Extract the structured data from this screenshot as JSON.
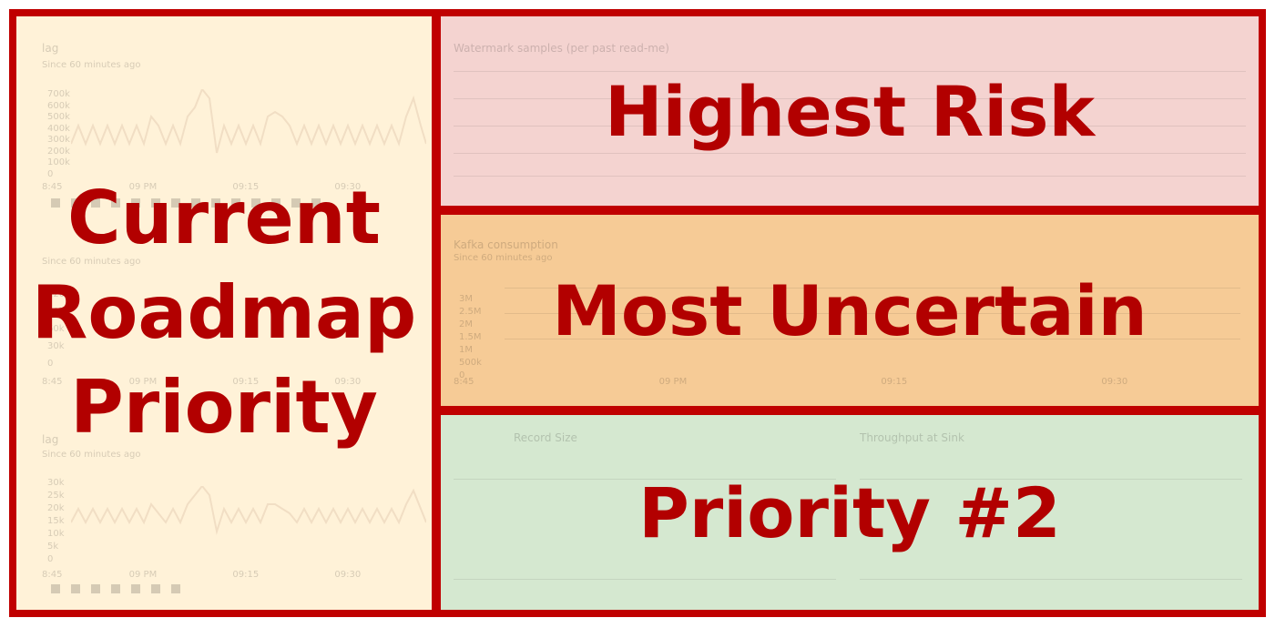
{
  "labels": {
    "current_roadmap": [
      "Current",
      "Roadmap",
      "Priority"
    ],
    "highest_risk": "Highest Risk",
    "most_uncertain": "Most Uncertain",
    "priority_two": "Priority #2"
  },
  "background_panels": {
    "lag_chart": {
      "title": "lag",
      "subtitle": "Since 60 minutes ago",
      "y_ticks": [
        "700k",
        "600k",
        "500k",
        "400k",
        "300k",
        "200k",
        "100k",
        "0"
      ],
      "x_ticks": [
        "8:45",
        "09 PM",
        "09:15",
        "09:30"
      ]
    },
    "middle_chart": {
      "subtitle": "Since 60 minutes ago",
      "y_ticks": [
        "120k",
        "90k",
        "60k",
        "30k",
        "0"
      ],
      "x_ticks": [
        "8:45",
        "09 PM",
        "09:15",
        "09:30"
      ]
    },
    "bottom_chart": {
      "title": "lag",
      "subtitle": "Since 60 minutes ago",
      "y_ticks": [
        "30k",
        "25k",
        "20k",
        "15k",
        "10k",
        "5k",
        "0"
      ],
      "x_ticks": [
        "8:45",
        "09 PM",
        "09:15",
        "09:30"
      ]
    },
    "watermark": {
      "title": "Watermark samples (per past read-me)"
    },
    "kafka": {
      "title": "Kafka consumption",
      "subtitle": "Since 60 minutes ago",
      "y_ticks": [
        "3M",
        "2.5M",
        "2M",
        "1.5M",
        "1M",
        "500k",
        "0"
      ],
      "x_ticks": [
        "8:45",
        "09 PM",
        "09:15",
        "09:30"
      ]
    },
    "record_size": {
      "title": "Record Size"
    },
    "throughput": {
      "title": "Throughput at Sink"
    }
  },
  "colors": {
    "border": "#c00000",
    "text": "#b20000",
    "left": "#fff2d8",
    "risk": "#f4d3d0",
    "uncertain": "#f6cb96",
    "priority": "#d5e8d0"
  }
}
